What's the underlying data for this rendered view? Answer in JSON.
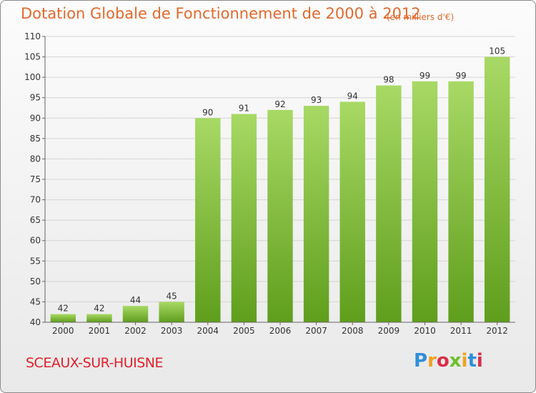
{
  "header": {
    "title": "Dotation Globale de Fonctionnement de 2000 à 2012",
    "unit": "(en milliers d'€)"
  },
  "footer": {
    "commune": "SCEAUX-SUR-HUISNE",
    "logo_text": "Proxiti"
  },
  "colors": {
    "accent": "#e06a2e",
    "commune": "#e0202a",
    "bar_top": "#a8d965",
    "bar_bottom": "#5f9e1c"
  },
  "chart_data": {
    "type": "bar",
    "title": "Dotation Globale de Fonctionnement de 2000 à 2012",
    "subtitle": "(en milliers d'€)",
    "xlabel": "",
    "ylabel": "",
    "categories": [
      "2000",
      "2001",
      "2002",
      "2003",
      "2004",
      "2005",
      "2006",
      "2007",
      "2008",
      "2009",
      "2010",
      "2011",
      "2012"
    ],
    "values": [
      42,
      42,
      44,
      45,
      90,
      91,
      92,
      93,
      94,
      98,
      99,
      99,
      105
    ],
    "ylim": [
      40,
      110
    ],
    "yticks": [
      40,
      45,
      50,
      55,
      60,
      65,
      70,
      75,
      80,
      85,
      90,
      95,
      100,
      105,
      110
    ],
    "grid": true,
    "legend": "none"
  }
}
